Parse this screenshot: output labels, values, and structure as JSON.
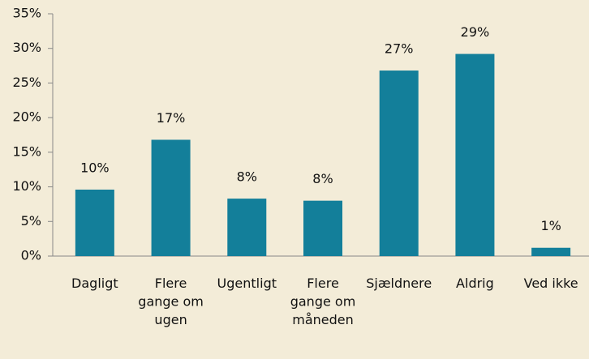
{
  "chart_data": {
    "type": "bar",
    "categories": [
      "Dagligt",
      "Flere gange om ugen",
      "Ugentligt",
      "Flere gange om måneden",
      "Sjældnere",
      "Aldrig",
      "Ved ikke"
    ],
    "values": [
      9.6,
      16.8,
      8.3,
      8.0,
      26.8,
      29.2,
      1.2
    ],
    "value_labels": [
      "10%",
      "17%",
      "8%",
      "8%",
      "27%",
      "29%",
      "1%"
    ],
    "color": "#137f9a",
    "ylim": [
      0,
      35
    ],
    "yticks": [
      {
        "value": 0,
        "label": "0%"
      },
      {
        "value": 5,
        "label": "5%"
      },
      {
        "value": 10,
        "label": "10%"
      },
      {
        "value": 15,
        "label": "15%"
      },
      {
        "value": 20,
        "label": "20%"
      },
      {
        "value": 25,
        "label": "25%"
      },
      {
        "value": 30,
        "label": "30%"
      },
      {
        "value": 35,
        "label": "35%"
      }
    ],
    "grid": false
  }
}
